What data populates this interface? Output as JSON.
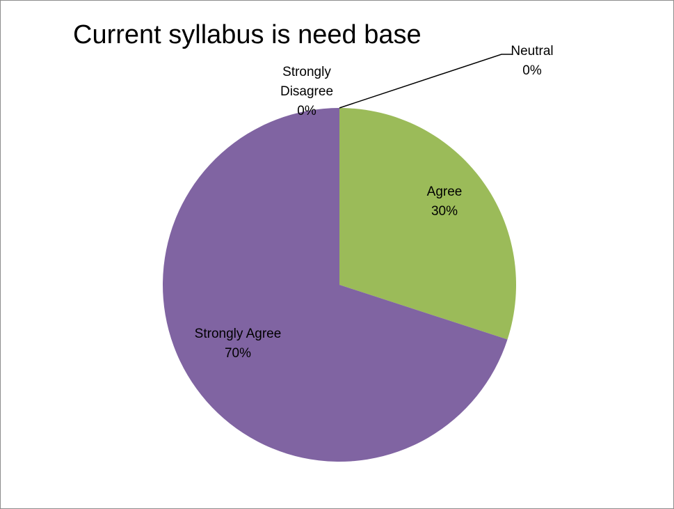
{
  "chart_data": {
    "type": "pie",
    "title": "Current syllabus is need base",
    "slices": [
      {
        "label": "Agree",
        "value": 30,
        "pct_label": "30%",
        "color": "#9BBB59"
      },
      {
        "label": "Strongly Agree",
        "value": 70,
        "pct_label": "70%",
        "color": "#8064A2"
      },
      {
        "label": "Strongly Disagree",
        "value": 0,
        "pct_label": "0%",
        "color": "#4BACC6"
      },
      {
        "label": "Neutral",
        "value": 0,
        "pct_label": "0%",
        "color": "#F79646"
      }
    ],
    "legend": "none"
  }
}
